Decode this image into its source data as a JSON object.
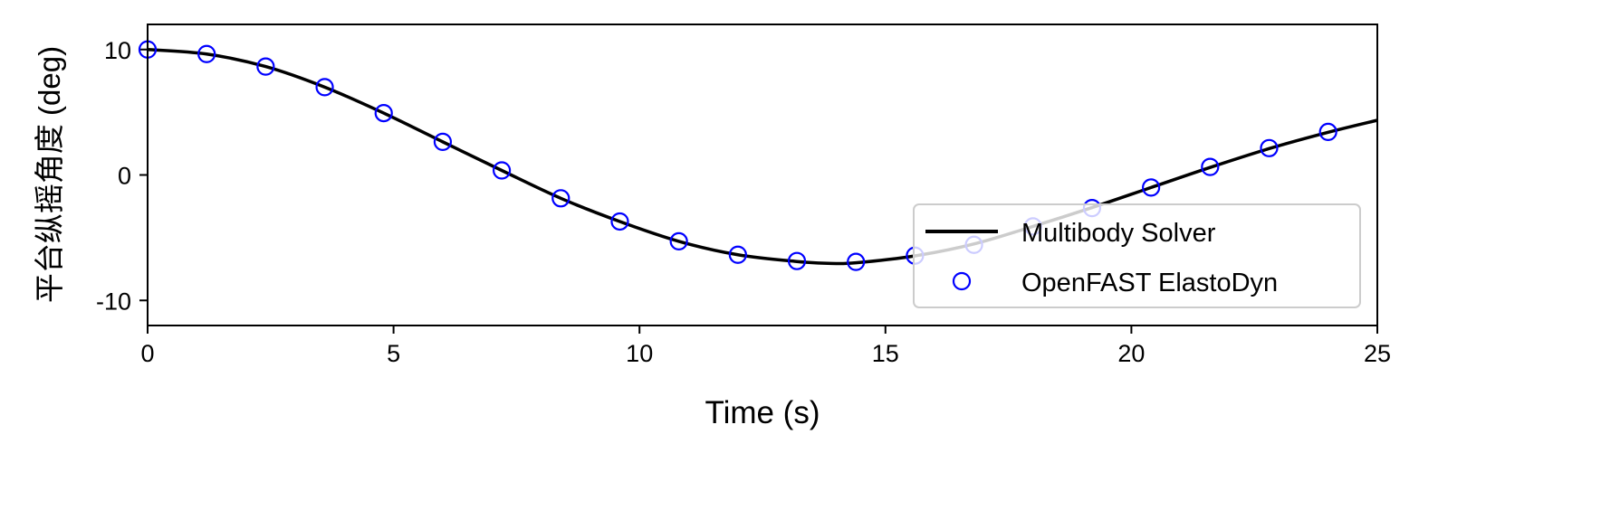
{
  "chart_data": {
    "type": "line",
    "title": "",
    "xlabel": "Time (s)",
    "ylabel": "平台纵摇角度 (deg)",
    "xlim": [
      0,
      25
    ],
    "ylim": [
      -12,
      12
    ],
    "xticks": [
      0,
      5,
      10,
      15,
      20,
      25
    ],
    "xtick_labels": [
      "0",
      "5",
      "10",
      "15",
      "20",
      "25"
    ],
    "yticks": [
      10,
      0,
      -10
    ],
    "ytick_labels": [
      "10",
      "0",
      "-10"
    ],
    "grid": false,
    "legend_placement": "lower-right",
    "series": [
      {
        "name": "Multibody Solver",
        "style": "line",
        "color": "#000000",
        "x": [
          0,
          1.2,
          2.4,
          3.6,
          4.8,
          6.0,
          7.2,
          8.4,
          9.6,
          10.8,
          12.0,
          13.2,
          13.9,
          14.4,
          15.6,
          16.8,
          18.0,
          19.2,
          20.4,
          21.6,
          22.8,
          24.0,
          25.0
        ],
        "y": [
          10,
          9.64,
          8.64,
          7.0,
          4.93,
          2.64,
          0.36,
          -1.86,
          -3.71,
          -5.29,
          -6.36,
          -6.9,
          -7.05,
          -7.0,
          -6.45,
          -5.5,
          -4.1,
          -2.6,
          -1.0,
          0.6,
          2.1,
          3.4,
          4.36
        ]
      },
      {
        "name": "OpenFAST ElastoDyn",
        "style": "scatter-open-circle",
        "color": "#0000ff",
        "x": [
          0,
          1.2,
          2.4,
          3.6,
          4.8,
          6.0,
          7.2,
          8.4,
          9.6,
          10.8,
          12.0,
          13.2,
          14.4,
          15.6,
          16.8,
          18.0,
          19.2,
          20.4,
          21.6,
          22.8,
          24.0
        ],
        "y": [
          10,
          9.64,
          8.64,
          7.0,
          4.93,
          2.64,
          0.36,
          -1.86,
          -3.71,
          -5.29,
          -6.36,
          -6.86,
          -6.93,
          -6.43,
          -5.57,
          -4.1,
          -2.64,
          -1.0,
          0.64,
          2.14,
          3.43
        ]
      }
    ]
  }
}
